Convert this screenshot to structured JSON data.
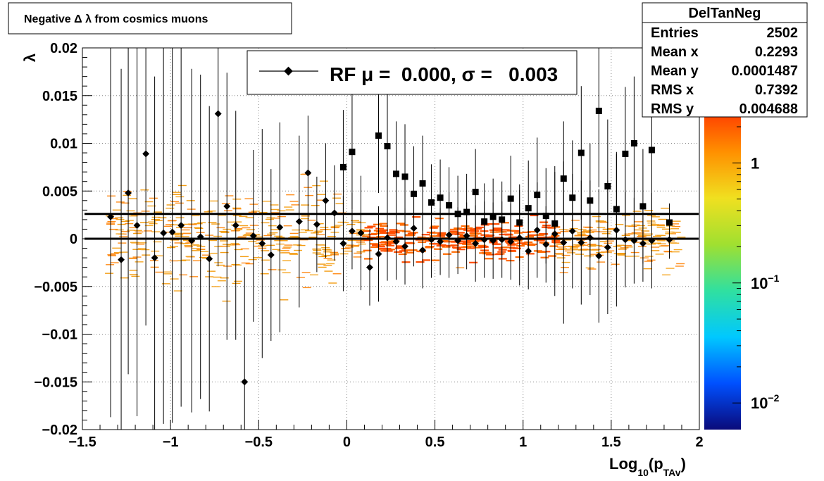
{
  "chart_data": {
    "type": "scatter",
    "title": "Negative Δ λ from cosmics muons",
    "xlabel": {
      "main": "Log",
      "sub": "10",
      "open": "(p",
      "sub2": "TAv",
      "close": ")"
    },
    "ylabel": "λ",
    "xlim": [
      -1.5,
      2.0
    ],
    "ylim": [
      -0.02,
      0.02
    ],
    "grid": true,
    "x_ticks": [
      {
        "value": -1.5,
        "label": "−1.5"
      },
      {
        "value": -1.0,
        "label": "−1"
      },
      {
        "value": -0.5,
        "label": "−0.5"
      },
      {
        "value": 0.0,
        "label": "0"
      },
      {
        "value": 0.5,
        "label": "0.5"
      },
      {
        "value": 1.0,
        "label": "1"
      },
      {
        "value": 1.5,
        "label": "1.5"
      },
      {
        "value": 2.0,
        "label": "2"
      }
    ],
    "y_ticks": [
      {
        "value": 0.02,
        "label": "0.02"
      },
      {
        "value": 0.015,
        "label": "0.015"
      },
      {
        "value": 0.01,
        "label": "0.01"
      },
      {
        "value": 0.005,
        "label": "0.005"
      },
      {
        "value": 0.0,
        "label": "0"
      },
      {
        "value": -0.005,
        "label": "−0.005"
      },
      {
        "value": -0.01,
        "label": "−0.01"
      },
      {
        "value": -0.015,
        "label": "−0.015"
      },
      {
        "value": -0.02,
        "label": "−0.02"
      }
    ],
    "legend": {
      "label": "RF μ =  0.000, σ =   0.003",
      "placement": "top-center",
      "marker": "diamond"
    },
    "reference_lines": [
      0.0,
      0.0026
    ],
    "profile_points": [
      {
        "x": -1.34,
        "y": 0.0023,
        "err": 0.021,
        "marker": "diamond"
      },
      {
        "x": -1.28,
        "y": -0.0022,
        "err": 0.02,
        "marker": "diamond"
      },
      {
        "x": -1.24,
        "y": 0.0048,
        "err": 0.019,
        "marker": "diamond"
      },
      {
        "x": -1.19,
        "y": 0.0014,
        "err": 0.02,
        "marker": "diamond"
      },
      {
        "x": -1.14,
        "y": 0.0089,
        "err": 0.018,
        "marker": "diamond"
      },
      {
        "x": -1.09,
        "y": -0.002,
        "err": 0.019,
        "marker": "diamond"
      },
      {
        "x": -1.04,
        "y": 0.0006,
        "err": 0.02,
        "marker": "diamond"
      },
      {
        "x": -0.99,
        "y": 0.0007,
        "err": 0.02,
        "marker": "diamond"
      },
      {
        "x": -0.94,
        "y": 0.0014,
        "err": 0.019,
        "marker": "diamond"
      },
      {
        "x": -0.88,
        "y": -0.0002,
        "err": 0.018,
        "marker": "diamond"
      },
      {
        "x": -0.83,
        "y": 0.0002,
        "err": 0.017,
        "marker": "diamond"
      },
      {
        "x": -0.78,
        "y": -0.0021,
        "err": 0.016,
        "marker": "diamond"
      },
      {
        "x": -0.73,
        "y": 0.0131,
        "err": 0.016,
        "marker": "diamond"
      },
      {
        "x": -0.68,
        "y": 0.0034,
        "err": 0.014,
        "marker": "diamond"
      },
      {
        "x": -0.63,
        "y": 0.0014,
        "err": 0.012,
        "marker": "diamond"
      },
      {
        "x": -0.58,
        "y": -0.015,
        "err": 0.012,
        "marker": "diamond"
      },
      {
        "x": -0.53,
        "y": 0.0003,
        "err": 0.009,
        "marker": "diamond"
      },
      {
        "x": -0.48,
        "y": -0.0005,
        "err": 0.012,
        "marker": "diamond"
      },
      {
        "x": -0.43,
        "y": -0.0017,
        "err": 0.009,
        "marker": "diamond"
      },
      {
        "x": -0.38,
        "y": 0.0012,
        "err": 0.011,
        "marker": "diamond"
      },
      {
        "x": -0.27,
        "y": 0.0018,
        "err": 0.009,
        "marker": "diamond"
      },
      {
        "x": -0.22,
        "y": 0.0069,
        "err": 0.006,
        "marker": "diamond"
      },
      {
        "x": -0.17,
        "y": 0.0015,
        "err": 0.005,
        "marker": "diamond"
      },
      {
        "x": -0.12,
        "y": 0.004,
        "err": 0.006,
        "marker": "diamond"
      },
      {
        "x": -0.07,
        "y": 0.0027,
        "err": 0.005,
        "marker": "diamond"
      },
      {
        "x": -0.02,
        "y": -0.0005,
        "err": 0.005,
        "marker": "diamond"
      },
      {
        "x": 0.03,
        "y": 0.0008,
        "err": 0.004,
        "marker": "diamond"
      },
      {
        "x": 0.08,
        "y": 0.0006,
        "err": 0.006,
        "marker": "diamond"
      },
      {
        "x": 0.13,
        "y": -0.003,
        "err": 0.004,
        "marker": "diamond"
      },
      {
        "x": 0.18,
        "y": -0.0016,
        "err": 0.005,
        "marker": "diamond"
      },
      {
        "x": 0.23,
        "y": 0.0001,
        "err": 0.0045,
        "marker": "diamond"
      },
      {
        "x": 0.28,
        "y": -0.0003,
        "err": 0.004,
        "marker": "diamond"
      },
      {
        "x": 0.33,
        "y": -0.0008,
        "err": 0.004,
        "marker": "diamond"
      },
      {
        "x": 0.38,
        "y": 0.0011,
        "err": 0.004,
        "marker": "diamond"
      },
      {
        "x": 0.43,
        "y": -0.0012,
        "err": 0.004,
        "marker": "diamond"
      },
      {
        "x": 0.48,
        "y": -0.0001,
        "err": 0.004,
        "marker": "diamond"
      },
      {
        "x": 0.53,
        "y": -0.0003,
        "err": 0.0035,
        "marker": "diamond"
      },
      {
        "x": 0.58,
        "y": 0.0004,
        "err": 0.0045,
        "marker": "diamond"
      },
      {
        "x": 0.63,
        "y": -0.0002,
        "err": 0.0035,
        "marker": "diamond"
      },
      {
        "x": 0.68,
        "y": 0.0003,
        "err": 0.0035,
        "marker": "diamond"
      },
      {
        "x": 0.73,
        "y": -0.0005,
        "err": 0.004,
        "marker": "diamond"
      },
      {
        "x": 0.78,
        "y": -0.0001,
        "err": 0.004,
        "marker": "diamond"
      },
      {
        "x": 0.83,
        "y": -0.0002,
        "err": 0.004,
        "marker": "diamond"
      },
      {
        "x": 0.88,
        "y": -0.0001,
        "err": 0.004,
        "marker": "diamond"
      },
      {
        "x": 0.93,
        "y": -0.0003,
        "err": 0.004,
        "marker": "diamond"
      },
      {
        "x": 0.98,
        "y": 0.0001,
        "err": 0.005,
        "marker": "diamond"
      },
      {
        "x": 1.03,
        "y": -0.0013,
        "err": 0.004,
        "marker": "diamond"
      },
      {
        "x": 1.08,
        "y": 0.0009,
        "err": 0.005,
        "marker": "diamond"
      },
      {
        "x": 1.13,
        "y": -0.0006,
        "err": 0.004,
        "marker": "diamond"
      },
      {
        "x": 1.18,
        "y": 0.0005,
        "err": 0.0065,
        "marker": "diamond"
      },
      {
        "x": 1.23,
        "y": -0.0004,
        "err": 0.0085,
        "marker": "diamond"
      },
      {
        "x": 1.28,
        "y": 0.0008,
        "err": 0.006,
        "marker": "diamond"
      },
      {
        "x": 1.33,
        "y": -0.0004,
        "err": 0.0065,
        "marker": "diamond"
      },
      {
        "x": 1.38,
        "y": 0.0001,
        "err": 0.006,
        "marker": "diamond"
      },
      {
        "x": 1.43,
        "y": -0.0018,
        "err": 0.007,
        "marker": "diamond"
      },
      {
        "x": 1.48,
        "y": -0.0009,
        "err": 0.007,
        "marker": "diamond"
      },
      {
        "x": 1.53,
        "y": 0.0009,
        "err": 0.008,
        "marker": "diamond"
      },
      {
        "x": 1.58,
        "y": -0.0001,
        "err": 0.005,
        "marker": "diamond"
      },
      {
        "x": 1.63,
        "y": -0.0002,
        "err": 0.0045,
        "marker": "diamond"
      },
      {
        "x": 1.68,
        "y": -0.0005,
        "err": 0.004,
        "marker": "diamond"
      },
      {
        "x": 1.73,
        "y": -0.0002,
        "err": 0.005,
        "marker": "diamond"
      },
      {
        "x": 1.83,
        "y": -0.0001,
        "err": 0.002,
        "marker": "diamond"
      },
      {
        "x": -0.02,
        "y": 0.0075,
        "err": 0.006,
        "marker": "square"
      },
      {
        "x": 0.03,
        "y": 0.0091,
        "err": 0.006,
        "marker": "square"
      },
      {
        "x": 0.18,
        "y": 0.0108,
        "err": 0.006,
        "marker": "square"
      },
      {
        "x": 0.23,
        "y": 0.0097,
        "err": 0.007,
        "marker": "square"
      },
      {
        "x": 0.28,
        "y": 0.0068,
        "err": 0.0055,
        "marker": "square"
      },
      {
        "x": 0.33,
        "y": 0.0065,
        "err": 0.0055,
        "marker": "square"
      },
      {
        "x": 0.38,
        "y": 0.0047,
        "err": 0.005,
        "marker": "square"
      },
      {
        "x": 0.43,
        "y": 0.0058,
        "err": 0.005,
        "marker": "square"
      },
      {
        "x": 0.48,
        "y": 0.0038,
        "err": 0.004,
        "marker": "square"
      },
      {
        "x": 0.53,
        "y": 0.0043,
        "err": 0.004,
        "marker": "square"
      },
      {
        "x": 0.58,
        "y": 0.0035,
        "err": 0.004,
        "marker": "square"
      },
      {
        "x": 0.63,
        "y": 0.0026,
        "err": 0.004,
        "marker": "square"
      },
      {
        "x": 0.68,
        "y": 0.0028,
        "err": 0.004,
        "marker": "square"
      },
      {
        "x": 0.73,
        "y": 0.0049,
        "err": 0.0045,
        "marker": "square"
      },
      {
        "x": 0.78,
        "y": 0.0018,
        "err": 0.004,
        "marker": "square"
      },
      {
        "x": 0.83,
        "y": 0.0023,
        "err": 0.004,
        "marker": "square"
      },
      {
        "x": 0.88,
        "y": 0.002,
        "err": 0.004,
        "marker": "square"
      },
      {
        "x": 0.93,
        "y": 0.0042,
        "err": 0.0045,
        "marker": "square"
      },
      {
        "x": 0.98,
        "y": 0.0017,
        "err": 0.004,
        "marker": "square"
      },
      {
        "x": 1.03,
        "y": 0.0032,
        "err": 0.005,
        "marker": "square"
      },
      {
        "x": 1.08,
        "y": 0.0046,
        "err": 0.006,
        "marker": "square"
      },
      {
        "x": 1.13,
        "y": 0.0024,
        "err": 0.005,
        "marker": "square"
      },
      {
        "x": 1.18,
        "y": 0.0016,
        "err": 0.006,
        "marker": "square"
      },
      {
        "x": 1.23,
        "y": 0.0063,
        "err": 0.006,
        "marker": "square"
      },
      {
        "x": 1.28,
        "y": 0.0043,
        "err": 0.006,
        "marker": "square"
      },
      {
        "x": 1.33,
        "y": 0.009,
        "err": 0.007,
        "marker": "square"
      },
      {
        "x": 1.38,
        "y": 0.004,
        "err": 0.006,
        "marker": "square"
      },
      {
        "x": 1.43,
        "y": 0.0134,
        "err": 0.008,
        "marker": "square"
      },
      {
        "x": 1.48,
        "y": 0.0055,
        "err": 0.007,
        "marker": "square"
      },
      {
        "x": 1.53,
        "y": 0.0031,
        "err": 0.006,
        "marker": "square"
      },
      {
        "x": 1.58,
        "y": 0.0089,
        "err": 0.007,
        "marker": "square"
      },
      {
        "x": 1.63,
        "y": 0.01,
        "err": 0.007,
        "marker": "square"
      },
      {
        "x": 1.68,
        "y": 0.0034,
        "err": 0.006,
        "marker": "square"
      },
      {
        "x": 1.73,
        "y": 0.0093,
        "err": 0.007,
        "marker": "square"
      },
      {
        "x": 1.83,
        "y": 0.0017,
        "err": 0.002,
        "marker": "square"
      }
    ],
    "stats_box": {
      "title": "DelTanNeg",
      "rows": [
        {
          "label": "Entries",
          "value": "2502"
        },
        {
          "label": "Mean x",
          "value": "0.2293"
        },
        {
          "label": "Mean y",
          "value": "0.0001487"
        },
        {
          "label": "RMS x",
          "value": "0.7392"
        },
        {
          "label": "RMS y",
          "value": "0.004688"
        }
      ]
    },
    "color_scale": {
      "type": "log",
      "range": [
        0.006,
        3.0
      ],
      "labels": [
        {
          "value": 1,
          "base": "1",
          "exp": ""
        },
        {
          "value": 0.1,
          "base": "10",
          "exp": "−1"
        },
        {
          "value": 0.01,
          "base": "10",
          "exp": "−2"
        }
      ],
      "colors": [
        "#0a0a7a",
        "#0050ff",
        "#00c8ff",
        "#30e0a0",
        "#a0e030",
        "#f0e020",
        "#ff9000",
        "#ff3000"
      ]
    }
  }
}
